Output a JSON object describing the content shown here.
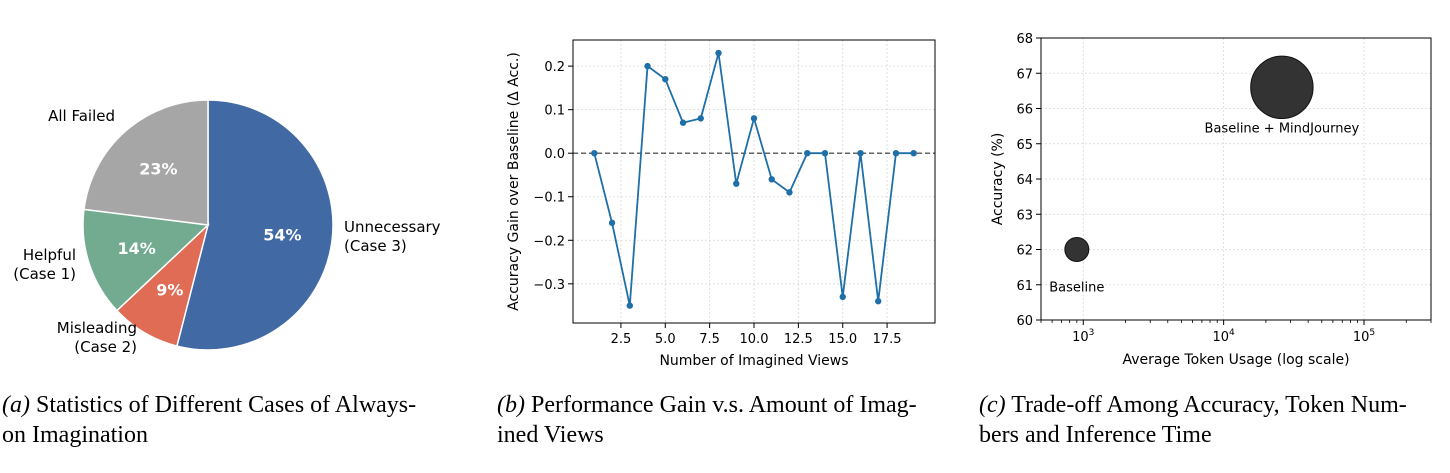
{
  "chart_data": [
    {
      "type": "pie",
      "labels": [
        {
          "line1": "Unnecessary",
          "line2": "(Case 3)"
        },
        {
          "line1": "Misleading",
          "line2": "(Case 2)"
        },
        {
          "line1": "Helpful",
          "line2": "(Case 1)"
        },
        {
          "line1": "All Failed",
          "line2": ""
        }
      ],
      "values": [
        54,
        9,
        14,
        23
      ],
      "pct_labels": [
        "54%",
        "9%",
        "14%",
        "23%"
      ],
      "colors": [
        "#4169a4",
        "#e06c55",
        "#72ab8f",
        "#a6a6a6"
      ],
      "start": "12 o'clock, clockwise"
    },
    {
      "type": "line",
      "xlabel": "Number of Imagined Views",
      "ylabel": "Accuracy Gain over Baseline (Δ Acc.)",
      "x": [
        1,
        2,
        3,
        4,
        5,
        6,
        7,
        8,
        9,
        10,
        11,
        12,
        13,
        14,
        15,
        16,
        17,
        18,
        19
      ],
      "y": [
        0.0,
        -0.16,
        -0.35,
        0.2,
        0.17,
        0.07,
        0.08,
        0.23,
        -0.07,
        0.08,
        -0.06,
        -0.09,
        0.0,
        0.0,
        -0.33,
        0.0,
        -0.34,
        0.0,
        0.0
      ],
      "xlim": [
        -0.2,
        20.2
      ],
      "ylim": [
        -0.39,
        0.26
      ],
      "xticks": [
        2.5,
        5.0,
        7.5,
        10.0,
        12.5,
        15.0,
        17.5
      ],
      "xtick_labels": [
        "2.5",
        "5.0",
        "7.5",
        "10.0",
        "12.5",
        "15.0",
        "17.5"
      ],
      "yticks": [
        0.2,
        0.1,
        0.0,
        -0.1,
        -0.2,
        -0.3
      ],
      "ytick_labels": [
        "0.2",
        "0.1",
        "0.0",
        "−0.1",
        "−0.2",
        "−0.3"
      ],
      "color": "#1f6fa8",
      "reference_line": 0.0,
      "grid": true
    },
    {
      "type": "scatter",
      "xlabel": "Average Token Usage (log scale)",
      "ylabel": "Accuracy (%)",
      "x_scale": "log",
      "xlim": [
        500,
        300000
      ],
      "ylim": [
        60,
        68
      ],
      "xticks": [
        1000,
        10000,
        100000
      ],
      "xtick_labels": [
        {
          "base": "10",
          "exp": "3"
        },
        {
          "base": "10",
          "exp": "4"
        },
        {
          "base": "10",
          "exp": "5"
        }
      ],
      "yticks": [
        60,
        61,
        62,
        63,
        64,
        65,
        66,
        67,
        68
      ],
      "ytick_labels": [
        "60",
        "61",
        "62",
        "63",
        "64",
        "65",
        "66",
        "67",
        "68"
      ],
      "points": [
        {
          "label": "Baseline",
          "x": 900,
          "y": 62.0,
          "relative_size": 1.0
        },
        {
          "label": "Baseline + MindJourney",
          "x": 26000,
          "y": 66.6,
          "relative_size": 2.6
        }
      ],
      "color": "#333333",
      "grid": true
    }
  ],
  "captions": [
    {
      "tag": "(a)",
      "line1": " Statistics of Different Cases of Always-",
      "line2": "on Imagination"
    },
    {
      "tag": "(b)",
      "line1": " Performance Gain v.s. Amount of Imag-",
      "line2": "ined Views"
    },
    {
      "tag": "(c)",
      "line1": " Trade-off Among Accuracy, Token Num-",
      "line2": "bers and Inference Time"
    }
  ]
}
